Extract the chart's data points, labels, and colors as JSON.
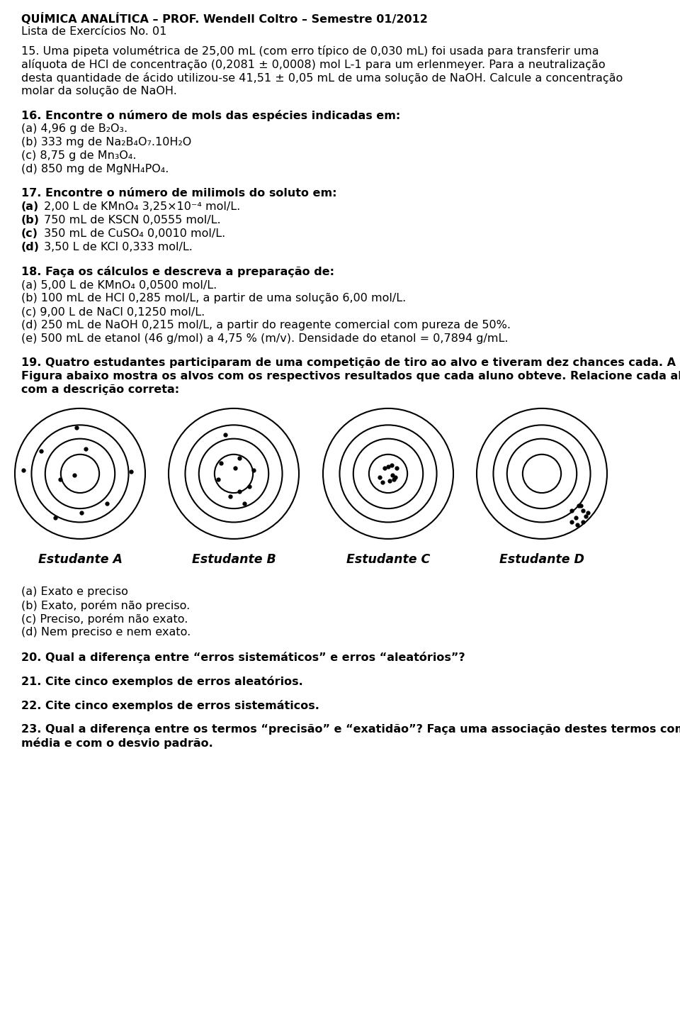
{
  "title_line1": "QUÍMICA ANALÍTICA – PROF. Wendell Coltro – Semestre 01/2012",
  "title_line2": "Lista de Exercícios No. 01",
  "q15_line1": "15. Uma pipeta volumétrica de 25,00 mL (com erro típico de 0,030 mL) foi usada para transferir uma",
  "q15_line2": "alíquota de HCl de concentração (0,2081 ± 0,0008) mol L-1 para um erlenmeyer. Para a neutralização",
  "q15_line3": "desta quantidade de ácido utilizou-se 41,51 ± 0,05 mL de uma solução de NaOH. Calcule a concentração",
  "q15_line4": "molar da solução de NaOH.",
  "q16_bold": "16. Encontre o número de mols das espécies indicadas em:",
  "q16_a": "(a) 4,96 g de B₂O₃.",
  "q16_b": "(b) 333 mg de Na₂B₄O₇.10H₂O",
  "q16_c": "(c) 8,75 g de Mn₃O₄.",
  "q16_d": "(d) 850 mg de MgNH₄PO₄.",
  "q17_bold": "17. Encontre o número de milimols do soluto em:",
  "q17_a_bold": "(a)",
  "q17_a_rest": " 2,00 L de KMnO₄ 3,25×10⁻⁴ mol/L.",
  "q17_b_bold": "(b)",
  "q17_b_rest": " 750 mL de KSCN 0,0555 mol/L.",
  "q17_c_bold": "(c)",
  "q17_c_rest": " 350 mL de CuSO₄ 0,0010 mol/L.",
  "q17_d_bold": "(d)",
  "q17_d_rest": " 3,50 L de KCl 0,333 mol/L.",
  "q18_bold": "18. Faça os cálculos e descreva a preparação de:",
  "q18_a": "(a) 5,00 L de KMnO₄ 0,0500 mol/L.",
  "q18_b": "(b) 100 mL de HCl 0,285 mol/L, a partir de uma solução 6,00 mol/L.",
  "q18_c": "(c) 9,00 L de NaCl 0,1250 mol/L.",
  "q18_d": "(d) 250 mL de NaOH 0,215 mol/L, a partir do reagente comercial com pureza de 50%.",
  "q18_e": "(e) 500 mL de etanol (46 g/mol) a 4,75 % (m/v). Densidade do etanol = 0,7894 g/mL.",
  "q19_line1": "19. Quatro estudantes participaram de uma competição de tiro ao alvo e tiveram dez chances cada. A",
  "q19_line2": "Figura abaixo mostra os alvos com os respectivos resultados que cada aluno obteve. Relacione cada alvo",
  "q19_line3": "com a descrição correta:",
  "student_labels": [
    "Estudante A",
    "Estudante B",
    "Estudante C",
    "Estudante D"
  ],
  "q19_a": "(a) Exato e preciso",
  "q19_b": "(b) Exato, porém não preciso.",
  "q19_c": "(c) Preciso, porém não exato.",
  "q19_d": "(d) Nem preciso e nem exato.",
  "q20": "20. Qual a diferença entre “erros sistemáticos” e erros “aleatórios”?",
  "q21": "21. Cite cinco exemplos de erros aleatórios.",
  "q22": "22. Cite cinco exemplos de erros sistemáticos.",
  "q23_line1": "23. Qual a diferença entre os termos “precisão” e “exatidão”? Faça uma associação destes termos com a",
  "q23_line2": "média e com o desvio padrão.",
  "bg_color": "#ffffff",
  "text_color": "#000000",
  "font_size": 11.5
}
